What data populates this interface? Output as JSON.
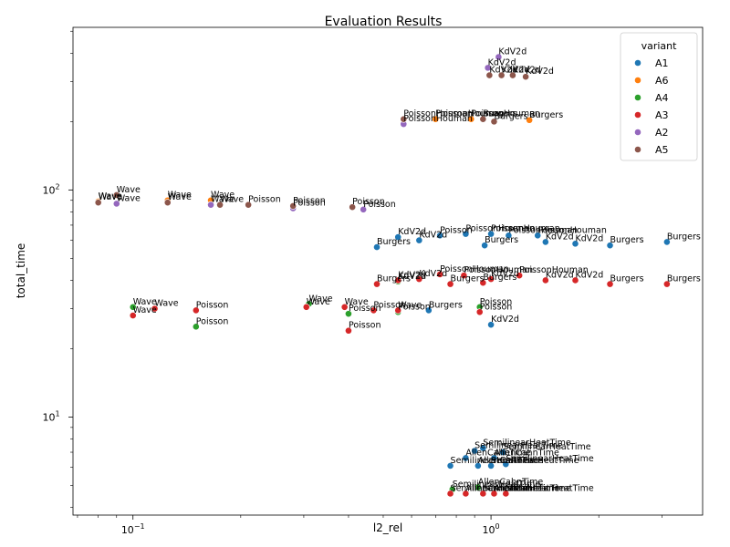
{
  "chart_data": {
    "type": "scatter",
    "title": "Evaluation Results",
    "xlabel": "l2_rel",
    "ylabel": "total_time",
    "xscale": "log",
    "yscale": "log",
    "xlim": [
      0.068,
      3.9
    ],
    "ylim": [
      3.7,
      520
    ],
    "x_ticks": [
      {
        "value": 0.1,
        "base": "10",
        "exp": "−1"
      },
      {
        "value": 1,
        "base": "10",
        "exp": "0"
      }
    ],
    "y_ticks": [
      {
        "value": 10,
        "base": "10",
        "exp": "1"
      },
      {
        "value": 100,
        "base": "10",
        "exp": "2"
      }
    ],
    "legend": {
      "title": "variant",
      "position": "top-right"
    },
    "colors": {
      "A1": "#1f77b4",
      "A6": "#ff7f0e",
      "A4": "#2ca02c",
      "A3": "#d62728",
      "A2": "#9467bd",
      "A5": "#8c564b"
    },
    "series": [
      {
        "name": "A1",
        "points": [
          [
            0.48,
            56,
            "Burgers"
          ],
          [
            0.55,
            62,
            "KdV2d"
          ],
          [
            0.63,
            60,
            "KdV2d"
          ],
          [
            0.72,
            63,
            "Poisson"
          ],
          [
            0.85,
            64,
            "PoissonHouman"
          ],
          [
            0.96,
            57,
            "Burgers"
          ],
          [
            1.0,
            64,
            "PoissonHouman"
          ],
          [
            1.12,
            63,
            "PoissonHouman"
          ],
          [
            1.35,
            63,
            "PoissonHouman"
          ],
          [
            1.42,
            59,
            "KdV2d"
          ],
          [
            1.72,
            58,
            "KdV2d"
          ],
          [
            2.15,
            57,
            "Burgers"
          ],
          [
            3.1,
            59,
            "Burgers"
          ],
          [
            0.67,
            29.5,
            "Burgers"
          ],
          [
            1.0,
            25.5,
            "KdV2d"
          ],
          [
            0.77,
            6.1,
            "SemilinearHeatTime"
          ],
          [
            0.85,
            6.6,
            "AllenCahnTime"
          ],
          [
            0.9,
            7.1,
            "SemilinearHeatTime"
          ],
          [
            0.95,
            7.3,
            "SemilinearHeatTime"
          ],
          [
            0.92,
            6.1,
            "AllenCahnTime"
          ],
          [
            1.0,
            6.1,
            "SemilinearHeatTime"
          ],
          [
            1.02,
            6.6,
            "AllenCahnTime"
          ],
          [
            1.08,
            7.0,
            "SemilinearHeatTime"
          ],
          [
            1.1,
            6.2,
            "SemilinearHeatTime"
          ]
        ]
      },
      {
        "name": "A6",
        "points": [
          [
            0.08,
            89,
            "Wave"
          ],
          [
            0.125,
            90,
            "Wave"
          ],
          [
            0.165,
            90,
            "Wave"
          ],
          [
            0.7,
            205,
            "PoissonHouman"
          ],
          [
            0.88,
            205,
            "PoissonHouman"
          ],
          [
            1.28,
            203,
            "Burgers"
          ]
        ]
      },
      {
        "name": "A4",
        "points": [
          [
            0.1,
            30.5,
            "Wave"
          ],
          [
            0.15,
            25,
            "Poisson"
          ],
          [
            0.31,
            31.5,
            "Wave"
          ],
          [
            0.4,
            28.5,
            "Poisson"
          ],
          [
            0.55,
            29,
            "Poisson"
          ],
          [
            0.93,
            30.5,
            "Poisson"
          ],
          [
            0.55,
            39.5,
            "KdV2d"
          ],
          [
            0.78,
            4.8,
            "SemilinearHeatTime"
          ],
          [
            0.92,
            4.9,
            "AllenCahnTime"
          ]
        ]
      },
      {
        "name": "A3",
        "points": [
          [
            0.1,
            28,
            "Wave"
          ],
          [
            0.115,
            30,
            "Wave"
          ],
          [
            0.15,
            29.5,
            "Poisson"
          ],
          [
            0.305,
            30.5,
            "Wave"
          ],
          [
            0.39,
            30.5,
            "Wave"
          ],
          [
            0.47,
            29.5,
            "Poisson"
          ],
          [
            0.55,
            29.5,
            "Wave"
          ],
          [
            0.4,
            24,
            "Poisson"
          ],
          [
            0.93,
            29,
            "Poisson"
          ],
          [
            0.48,
            38.5,
            "Burgers"
          ],
          [
            0.55,
            40,
            "KdV2d"
          ],
          [
            0.63,
            40.5,
            "KdV2d"
          ],
          [
            0.77,
            38.5,
            "Burgers"
          ],
          [
            0.95,
            39,
            "Burgers"
          ],
          [
            0.72,
            42.5,
            "PoissonHouman"
          ],
          [
            0.84,
            42,
            "PoissonHouman"
          ],
          [
            1.0,
            40.5,
            "KdV2d"
          ],
          [
            1.2,
            42,
            "PoissonHouman"
          ],
          [
            1.42,
            40,
            "KdV2d"
          ],
          [
            1.72,
            40,
            "KdV2d"
          ],
          [
            2.15,
            38.5,
            "Burgers"
          ],
          [
            3.1,
            38.5,
            "Burgers"
          ],
          [
            0.77,
            4.6,
            "SemilinearHeatTime"
          ],
          [
            0.85,
            4.6,
            "AllenCahnTime"
          ],
          [
            0.95,
            4.6,
            "SemilinearHeatTime"
          ],
          [
            1.02,
            4.6,
            "AllenCahnTime"
          ],
          [
            1.1,
            4.6,
            "SemilinearHeatTime"
          ]
        ]
      },
      {
        "name": "A2",
        "points": [
          [
            0.09,
            87,
            "Wave"
          ],
          [
            0.165,
            86,
            "Wave"
          ],
          [
            0.28,
            83,
            "Poisson"
          ],
          [
            0.44,
            82,
            "Poisson"
          ],
          [
            0.57,
            195,
            "PoissonHouman"
          ],
          [
            0.98,
            345,
            "KdV2d"
          ],
          [
            1.05,
            385,
            "KdV2d"
          ]
        ]
      },
      {
        "name": "A5",
        "points": [
          [
            0.08,
            88,
            "Wave"
          ],
          [
            0.09,
            95,
            "Wave"
          ],
          [
            0.125,
            88,
            "Wave"
          ],
          [
            0.175,
            86,
            "Wave"
          ],
          [
            0.21,
            86,
            "Poisson"
          ],
          [
            0.28,
            85,
            "Poisson"
          ],
          [
            0.41,
            84,
            "Poisson"
          ],
          [
            0.57,
            205,
            "PoissonHouman"
          ],
          [
            0.95,
            205,
            "Burgers"
          ],
          [
            1.02,
            200,
            "Burgers"
          ],
          [
            0.99,
            320,
            "KdV2d"
          ],
          [
            1.07,
            320,
            "KdV2d"
          ],
          [
            1.15,
            320,
            "KdV2d"
          ],
          [
            1.25,
            315,
            "KdV2d"
          ]
        ]
      }
    ]
  }
}
